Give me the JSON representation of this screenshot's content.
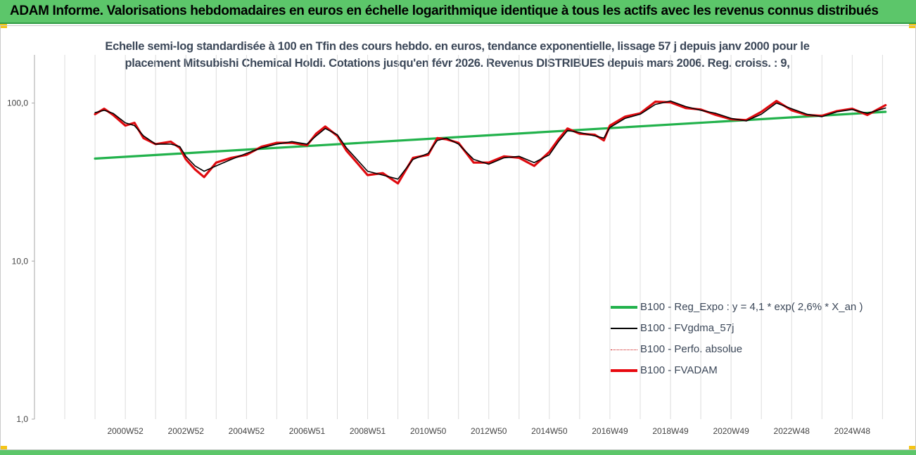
{
  "header": {
    "title": "ADAM Informe. Valorisations hebdomadaires en euros en échelle logarithmique identique à tous les actifs avec les revenus connus distribués",
    "background_color": "#5cc66a",
    "corner_color": "#f5c518"
  },
  "chart_data": {
    "type": "line",
    "title_lines": [
      "Echelle semi-log standardisée à 100 en Tfin des cours hebdo. en euros, tendance exponentielle, lissage 57 j depuis janv 2000 pour le",
      "placement Mitsubishi Chemical Holdi. Cotations jusqu'en févr 2026. Revenus DISTRIBUES depuis mars 2006. Reg. croiss. : 9,"
    ],
    "y_scale": "log",
    "ylim": [
      1,
      200
    ],
    "y_ticks": [
      {
        "value": 1,
        "label": "1,0"
      },
      {
        "value": 10,
        "label": "10,0"
      },
      {
        "value": 100,
        "label": "100,0"
      }
    ],
    "xlim": [
      1998.0,
      2026.2
    ],
    "x_ticks": [
      {
        "value": 2001.0,
        "label": "2000W52"
      },
      {
        "value": 2003.0,
        "label": "2002W52"
      },
      {
        "value": 2005.0,
        "label": "2004W52"
      },
      {
        "value": 2007.0,
        "label": "2006W51"
      },
      {
        "value": 2009.0,
        "label": "2008W51"
      },
      {
        "value": 2011.0,
        "label": "2010W50"
      },
      {
        "value": 2013.0,
        "label": "2012W50"
      },
      {
        "value": 2015.0,
        "label": "2014W50"
      },
      {
        "value": 2017.0,
        "label": "2016W49"
      },
      {
        "value": 2019.0,
        "label": "2018W49"
      },
      {
        "value": 2021.0,
        "label": "2020W49"
      },
      {
        "value": 2023.0,
        "label": "2022W48"
      },
      {
        "value": 2025.0,
        "label": "2024W48"
      }
    ],
    "x_gridlines": [
      1999,
      2000,
      2001,
      2002,
      2003,
      2004,
      2005,
      2006,
      2007,
      2008,
      2009,
      2010,
      2011,
      2012,
      2013,
      2014,
      2015,
      2016,
      2017,
      2018,
      2019,
      2020,
      2021,
      2022,
      2023,
      2024,
      2025,
      2026
    ],
    "legend_position": "right",
    "series": [
      {
        "name": "B100 - Reg_Expo : y = 4,1 * exp( 2,6% *  X_an )",
        "color": "#22b24c",
        "style": "solid-thick",
        "points": [
          [
            2000.0,
            44.5
          ],
          [
            2026.1,
            88.0
          ]
        ]
      },
      {
        "name": "B100 - FVgdma_57j",
        "color": "#000000",
        "style": "solid-thin",
        "points": [
          [
            2000.0,
            87
          ],
          [
            2000.3,
            90
          ],
          [
            2000.6,
            86
          ],
          [
            2001.0,
            75
          ],
          [
            2001.3,
            72
          ],
          [
            2001.6,
            62
          ],
          [
            2002.0,
            55
          ],
          [
            2002.5,
            55
          ],
          [
            2002.8,
            53
          ],
          [
            2003.0,
            46
          ],
          [
            2003.3,
            40
          ],
          [
            2003.6,
            37
          ],
          [
            2004.0,
            40
          ],
          [
            2004.5,
            44
          ],
          [
            2005.0,
            48
          ],
          [
            2005.5,
            52
          ],
          [
            2006.0,
            55
          ],
          [
            2006.5,
            57
          ],
          [
            2007.0,
            55
          ],
          [
            2007.3,
            62
          ],
          [
            2007.6,
            69
          ],
          [
            2008.0,
            63
          ],
          [
            2008.3,
            52
          ],
          [
            2008.6,
            45
          ],
          [
            2009.0,
            37
          ],
          [
            2009.5,
            35
          ],
          [
            2010.0,
            33
          ],
          [
            2010.5,
            44
          ],
          [
            2011.0,
            48
          ],
          [
            2011.3,
            58
          ],
          [
            2011.6,
            60
          ],
          [
            2012.0,
            55
          ],
          [
            2012.5,
            44
          ],
          [
            2013.0,
            41
          ],
          [
            2013.5,
            45
          ],
          [
            2014.0,
            46
          ],
          [
            2014.5,
            42
          ],
          [
            2015.0,
            47
          ],
          [
            2015.3,
            57
          ],
          [
            2015.6,
            67
          ],
          [
            2016.0,
            65
          ],
          [
            2016.5,
            62
          ],
          [
            2016.8,
            60
          ],
          [
            2017.0,
            70
          ],
          [
            2017.5,
            80
          ],
          [
            2018.0,
            85
          ],
          [
            2018.5,
            98
          ],
          [
            2019.0,
            103
          ],
          [
            2019.5,
            95
          ],
          [
            2020.0,
            90
          ],
          [
            2020.5,
            86
          ],
          [
            2021.0,
            80
          ],
          [
            2021.5,
            77
          ],
          [
            2022.0,
            85
          ],
          [
            2022.5,
            100
          ],
          [
            2023.0,
            92
          ],
          [
            2023.5,
            85
          ],
          [
            2024.0,
            82
          ],
          [
            2024.5,
            88
          ],
          [
            2025.0,
            91
          ],
          [
            2025.5,
            86
          ],
          [
            2026.1,
            93
          ]
        ]
      },
      {
        "name": "B100 - Perfo. absolue",
        "color": "#cc1111",
        "style": "dotted",
        "points": [
          [
            2000.0,
            85
          ],
          [
            2000.3,
            92
          ],
          [
            2000.6,
            84
          ],
          [
            2001.0,
            72
          ],
          [
            2001.3,
            75
          ],
          [
            2001.6,
            60
          ],
          [
            2002.0,
            55
          ],
          [
            2002.5,
            57
          ],
          [
            2002.8,
            52
          ],
          [
            2003.0,
            44
          ],
          [
            2003.3,
            38
          ],
          [
            2003.6,
            34
          ],
          [
            2004.0,
            42
          ],
          [
            2004.5,
            45
          ],
          [
            2005.0,
            47
          ],
          [
            2005.5,
            53
          ],
          [
            2006.0,
            56
          ],
          [
            2006.5,
            56
          ],
          [
            2007.0,
            54
          ],
          [
            2007.3,
            64
          ],
          [
            2007.6,
            71
          ],
          [
            2008.0,
            62
          ],
          [
            2008.3,
            50
          ],
          [
            2008.6,
            43
          ],
          [
            2009.0,
            35
          ],
          [
            2009.5,
            36
          ],
          [
            2010.0,
            31
          ],
          [
            2010.5,
            45
          ],
          [
            2011.0,
            47
          ],
          [
            2011.3,
            60
          ],
          [
            2011.6,
            59
          ],
          [
            2012.0,
            56
          ],
          [
            2012.5,
            42
          ],
          [
            2013.0,
            42
          ],
          [
            2013.5,
            46
          ],
          [
            2014.0,
            45
          ],
          [
            2014.5,
            40
          ],
          [
            2015.0,
            49
          ],
          [
            2015.3,
            59
          ],
          [
            2015.6,
            69
          ],
          [
            2016.0,
            64
          ],
          [
            2016.5,
            63
          ],
          [
            2016.8,
            58
          ],
          [
            2017.0,
            72
          ],
          [
            2017.5,
            82
          ],
          [
            2018.0,
            86
          ],
          [
            2018.5,
            102
          ],
          [
            2019.0,
            101
          ],
          [
            2019.5,
            93
          ],
          [
            2020.0,
            91
          ],
          [
            2020.5,
            84
          ],
          [
            2021.0,
            79
          ],
          [
            2021.5,
            78
          ],
          [
            2022.0,
            88
          ],
          [
            2022.5,
            103
          ],
          [
            2023.0,
            90
          ],
          [
            2023.5,
            84
          ],
          [
            2024.0,
            83
          ],
          [
            2024.5,
            89
          ],
          [
            2025.0,
            92
          ],
          [
            2025.5,
            84
          ],
          [
            2026.1,
            97
          ]
        ]
      },
      {
        "name": "B100 - FVADAM",
        "color": "#e8080f",
        "style": "solid-thick",
        "points": [
          [
            2000.0,
            85
          ],
          [
            2000.3,
            92
          ],
          [
            2000.6,
            84
          ],
          [
            2001.0,
            72
          ],
          [
            2001.3,
            75
          ],
          [
            2001.6,
            60
          ],
          [
            2002.0,
            55
          ],
          [
            2002.5,
            57
          ],
          [
            2002.8,
            52
          ],
          [
            2003.0,
            44
          ],
          [
            2003.3,
            38
          ],
          [
            2003.6,
            34
          ],
          [
            2004.0,
            42
          ],
          [
            2004.5,
            45
          ],
          [
            2005.0,
            47
          ],
          [
            2005.5,
            53
          ],
          [
            2006.0,
            56
          ],
          [
            2006.5,
            56
          ],
          [
            2007.0,
            54
          ],
          [
            2007.3,
            64
          ],
          [
            2007.6,
            71
          ],
          [
            2008.0,
            62
          ],
          [
            2008.3,
            50
          ],
          [
            2008.6,
            43
          ],
          [
            2009.0,
            35
          ],
          [
            2009.5,
            36
          ],
          [
            2010.0,
            31
          ],
          [
            2010.5,
            45
          ],
          [
            2011.0,
            47
          ],
          [
            2011.3,
            60
          ],
          [
            2011.6,
            59
          ],
          [
            2012.0,
            56
          ],
          [
            2012.5,
            42
          ],
          [
            2013.0,
            42
          ],
          [
            2013.5,
            46
          ],
          [
            2014.0,
            45
          ],
          [
            2014.5,
            40
          ],
          [
            2015.0,
            49
          ],
          [
            2015.3,
            59
          ],
          [
            2015.6,
            69
          ],
          [
            2016.0,
            64
          ],
          [
            2016.5,
            63
          ],
          [
            2016.8,
            58
          ],
          [
            2017.0,
            72
          ],
          [
            2017.5,
            82
          ],
          [
            2018.0,
            86
          ],
          [
            2018.5,
            102
          ],
          [
            2019.0,
            101
          ],
          [
            2019.5,
            93
          ],
          [
            2020.0,
            91
          ],
          [
            2020.5,
            84
          ],
          [
            2021.0,
            79
          ],
          [
            2021.5,
            78
          ],
          [
            2022.0,
            88
          ],
          [
            2022.5,
            103
          ],
          [
            2023.0,
            90
          ],
          [
            2023.5,
            84
          ],
          [
            2024.0,
            83
          ],
          [
            2024.5,
            89
          ],
          [
            2025.0,
            92
          ],
          [
            2025.5,
            84
          ],
          [
            2026.1,
            97
          ]
        ]
      }
    ]
  }
}
